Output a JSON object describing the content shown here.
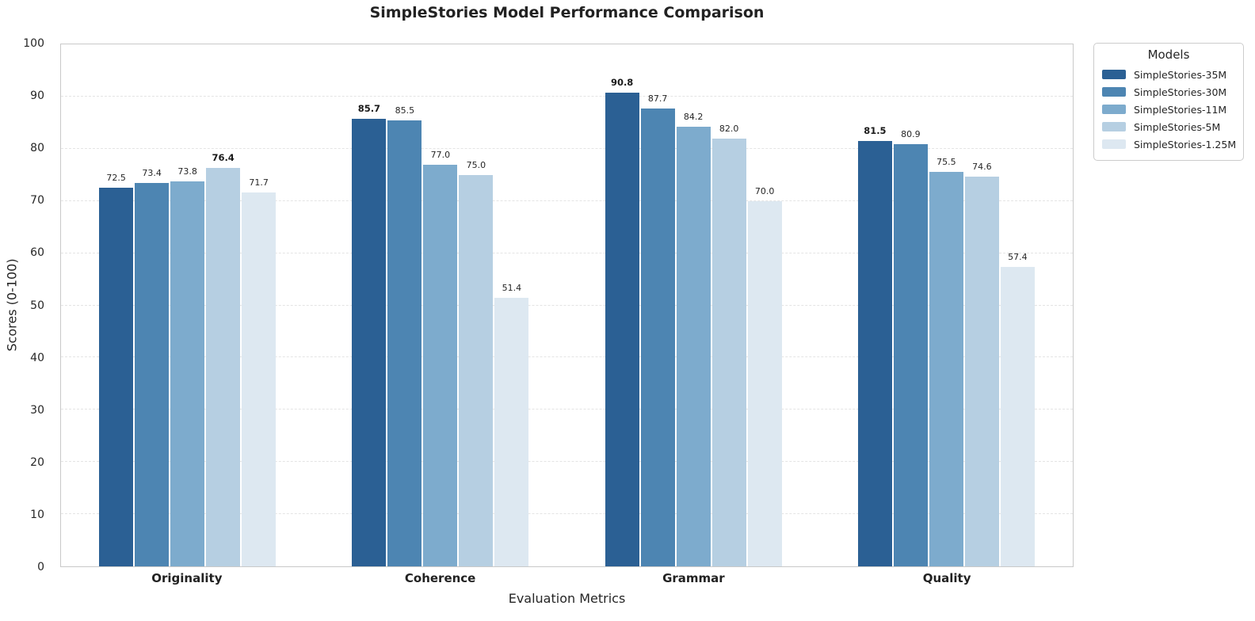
{
  "chart_data": {
    "type": "bar",
    "title": "SimpleStories Model Performance Comparison",
    "xlabel": "Evaluation Metrics",
    "ylabel": "Scores (0-100)",
    "ylim": [
      0,
      100
    ],
    "yticks": [
      0,
      10,
      20,
      30,
      40,
      50,
      60,
      70,
      80,
      90,
      100
    ],
    "grid": "horizontal-dashed",
    "background_color": "#ffffff",
    "categories": [
      "Originality",
      "Coherence",
      "Grammar",
      "Quality"
    ],
    "series": [
      {
        "name": "SimpleStories-35M",
        "color": "#2b6094",
        "values": [
          72.5,
          85.7,
          90.8,
          81.5
        ]
      },
      {
        "name": "SimpleStories-30M",
        "color": "#4d85b2",
        "values": [
          73.4,
          85.5,
          87.7,
          80.9
        ]
      },
      {
        "name": "SimpleStories-11M",
        "color": "#7dabcd",
        "values": [
          73.8,
          77.0,
          84.2,
          75.5
        ]
      },
      {
        "name": "SimpleStories-5M",
        "color": "#b6cfe2",
        "values": [
          76.4,
          75.0,
          82.0,
          74.6
        ]
      },
      {
        "name": "SimpleStories-1.25M",
        "color": "#dde8f1",
        "values": [
          71.7,
          51.4,
          70.0,
          57.4
        ]
      }
    ],
    "value_label_format": "one-decimal",
    "value_label_bold_rule": "max-in-group",
    "legend": {
      "title": "Models",
      "position": "outside-top-right"
    }
  }
}
